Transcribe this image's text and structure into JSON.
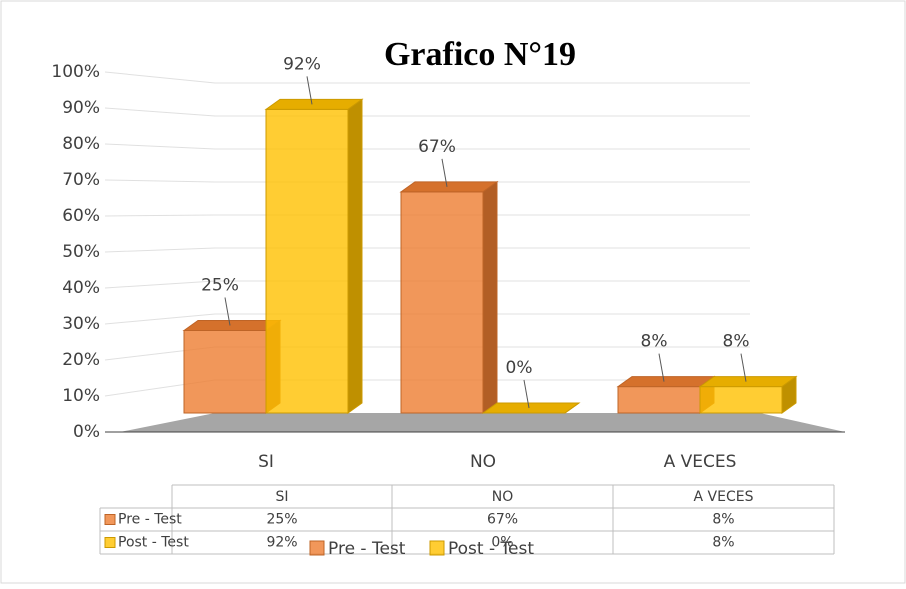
{
  "chart_data": {
    "type": "bar3d",
    "title": "Grafico N°19",
    "categories": [
      "SI",
      "NO",
      "A VECES"
    ],
    "series": [
      {
        "name": "Pre - Test",
        "color": "#ED7D31",
        "values": [
          25,
          67,
          8
        ],
        "value_labels": [
          "25%",
          "67%",
          "8%"
        ]
      },
      {
        "name": "Post - Test",
        "color": "#FFC000",
        "values": [
          92,
          0,
          8
        ],
        "value_labels": [
          "92%",
          "0%",
          "8%"
        ]
      }
    ],
    "ylim": [
      0,
      100
    ],
    "yticks": [
      {
        "value": 0,
        "label": "0%"
      },
      {
        "value": 10,
        "label": "10%"
      },
      {
        "value": 20,
        "label": "20%"
      },
      {
        "value": 30,
        "label": "30%"
      },
      {
        "value": 40,
        "label": "40%"
      },
      {
        "value": 50,
        "label": "50%"
      },
      {
        "value": 60,
        "label": "60%"
      },
      {
        "value": 70,
        "label": "70%"
      },
      {
        "value": 80,
        "label": "80%"
      },
      {
        "value": 90,
        "label": "90%"
      },
      {
        "value": 100,
        "label": "100%"
      }
    ],
    "grid": true,
    "legend": "bottom",
    "data_table": true
  }
}
